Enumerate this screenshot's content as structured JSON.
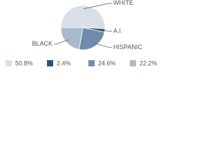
{
  "chart_data": {
    "type": "pie",
    "categories": [
      "WHITE",
      "A.I.",
      "HISPANIC",
      "BLACK"
    ],
    "values": [
      50.8,
      2.4,
      24.6,
      22.2
    ],
    "value_labels": [
      "50.8%",
      "2.4%",
      "24.6%",
      "22.2%"
    ],
    "colors": [
      "#d9dfe7",
      "#2d5172",
      "#6f8dab",
      "#a9bacc"
    ]
  }
}
